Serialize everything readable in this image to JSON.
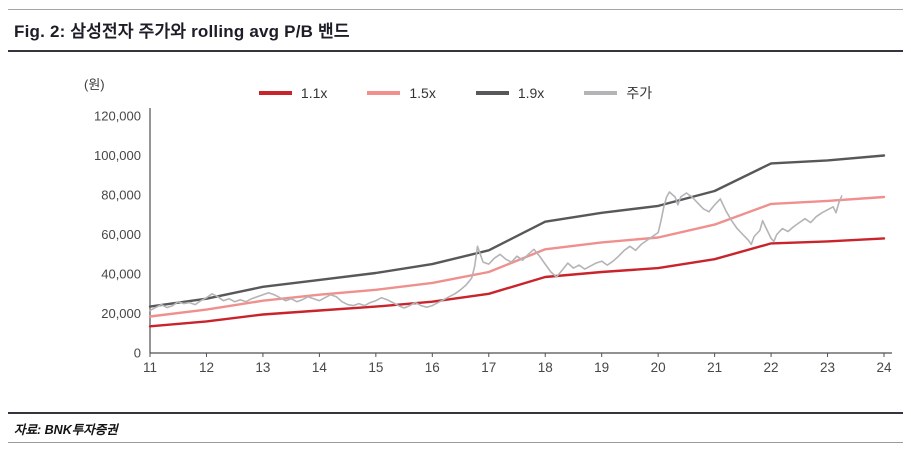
{
  "header": {
    "title": "Fig. 2: 삼성전자 주가와  rolling avg P/B 밴드"
  },
  "footer": {
    "source": "자료: BNK투자증권"
  },
  "chart_data": {
    "type": "line",
    "title": "삼성전자 주가와 rolling avg P/B 밴드",
    "unit_label": "(원)",
    "xlabel": "",
    "ylabel": "(원)",
    "grid": false,
    "legend_position": "top",
    "xlim": [
      11,
      24
    ],
    "ylim": [
      0,
      120000
    ],
    "x_ticks": [
      11,
      12,
      13,
      14,
      15,
      16,
      17,
      18,
      19,
      20,
      21,
      22,
      23,
      24
    ],
    "x_tick_labels": [
      "11",
      "12",
      "13",
      "14",
      "15",
      "16",
      "17",
      "18",
      "19",
      "20",
      "21",
      "22",
      "23",
      "24"
    ],
    "y_ticks": [
      0,
      20000,
      40000,
      60000,
      80000,
      100000,
      120000
    ],
    "y_tick_labels": [
      "0",
      "20,000",
      "40,000",
      "60,000",
      "80,000",
      "100,000",
      "120,000"
    ],
    "axis_color": "#4f4f55",
    "tick_label_color": "#474747",
    "series": [
      {
        "id": "1-1x",
        "name": "1.1x",
        "color": "#c9242b",
        "width": 2.4,
        "x": [
          11,
          12,
          13,
          14,
          15,
          16,
          17,
          18,
          19,
          20,
          21,
          22,
          23,
          24
        ],
        "values": [
          13500,
          16000,
          19500,
          21500,
          23500,
          26000,
          30000,
          38500,
          41000,
          43000,
          47500,
          55500,
          56500,
          58000
        ]
      },
      {
        "id": "1-5x",
        "name": "1.5x",
        "color": "#f0908e",
        "width": 2.4,
        "x": [
          11,
          12,
          13,
          14,
          15,
          16,
          17,
          18,
          19,
          20,
          21,
          22,
          23,
          24
        ],
        "values": [
          18500,
          22000,
          26500,
          29500,
          32000,
          35500,
          41000,
          52500,
          56000,
          58500,
          65000,
          75500,
          77000,
          79000
        ]
      },
      {
        "id": "1-9x",
        "name": "1.9x",
        "color": "#58585a",
        "width": 2.4,
        "x": [
          11,
          12,
          13,
          14,
          15,
          16,
          17,
          18,
          19,
          20,
          21,
          22,
          23,
          24
        ],
        "values": [
          23500,
          27500,
          33500,
          37000,
          40500,
          45000,
          52000,
          66500,
          71000,
          74500,
          82000,
          96000,
          97500,
          100000
        ]
      },
      {
        "id": "price",
        "name": "주가",
        "color": "#b4b4b6",
        "width": 1.6,
        "points": [
          [
            11.0,
            21500
          ],
          [
            11.1,
            23000
          ],
          [
            11.2,
            24500
          ],
          [
            11.3,
            23000
          ],
          [
            11.4,
            24000
          ],
          [
            11.5,
            26000
          ],
          [
            11.6,
            25000
          ],
          [
            11.7,
            25500
          ],
          [
            11.8,
            24500
          ],
          [
            11.9,
            26500
          ],
          [
            12.0,
            28000
          ],
          [
            12.1,
            30000
          ],
          [
            12.2,
            28500
          ],
          [
            12.3,
            26500
          ],
          [
            12.4,
            27500
          ],
          [
            12.5,
            26000
          ],
          [
            12.6,
            27000
          ],
          [
            12.7,
            26000
          ],
          [
            12.8,
            27500
          ],
          [
            12.9,
            28500
          ],
          [
            13.0,
            29500
          ],
          [
            13.1,
            30500
          ],
          [
            13.2,
            29500
          ],
          [
            13.3,
            28000
          ],
          [
            13.4,
            26500
          ],
          [
            13.5,
            27500
          ],
          [
            13.6,
            26000
          ],
          [
            13.7,
            27000
          ],
          [
            13.8,
            28500
          ],
          [
            13.9,
            27500
          ],
          [
            14.0,
            26500
          ],
          [
            14.1,
            28000
          ],
          [
            14.2,
            29500
          ],
          [
            14.3,
            28500
          ],
          [
            14.4,
            26000
          ],
          [
            14.5,
            24500
          ],
          [
            14.6,
            24000
          ],
          [
            14.7,
            25000
          ],
          [
            14.8,
            24000
          ],
          [
            14.9,
            25500
          ],
          [
            15.0,
            26500
          ],
          [
            15.1,
            28000
          ],
          [
            15.2,
            27000
          ],
          [
            15.3,
            25500
          ],
          [
            15.4,
            24000
          ],
          [
            15.5,
            22800
          ],
          [
            15.6,
            24000
          ],
          [
            15.7,
            25500
          ],
          [
            15.8,
            24000
          ],
          [
            15.9,
            23200
          ],
          [
            16.0,
            24000
          ],
          [
            16.1,
            25500
          ],
          [
            16.2,
            27000
          ],
          [
            16.3,
            28500
          ],
          [
            16.4,
            30000
          ],
          [
            16.5,
            32000
          ],
          [
            16.6,
            34500
          ],
          [
            16.7,
            38000
          ],
          [
            16.75,
            44000
          ],
          [
            16.8,
            54000
          ],
          [
            16.85,
            50000
          ],
          [
            16.9,
            46000
          ],
          [
            17.0,
            45000
          ],
          [
            17.1,
            48000
          ],
          [
            17.2,
            50000
          ],
          [
            17.3,
            47500
          ],
          [
            17.4,
            46000
          ],
          [
            17.5,
            49000
          ],
          [
            17.6,
            47000
          ],
          [
            17.7,
            50000
          ],
          [
            17.8,
            52500
          ],
          [
            17.9,
            49000
          ],
          [
            18.0,
            45000
          ],
          [
            18.1,
            41000
          ],
          [
            18.2,
            38500
          ],
          [
            18.3,
            42000
          ],
          [
            18.4,
            45500
          ],
          [
            18.5,
            43000
          ],
          [
            18.6,
            44500
          ],
          [
            18.7,
            42500
          ],
          [
            18.8,
            44000
          ],
          [
            18.9,
            45500
          ],
          [
            19.0,
            46500
          ],
          [
            19.1,
            44500
          ],
          [
            19.2,
            46500
          ],
          [
            19.3,
            49000
          ],
          [
            19.4,
            52000
          ],
          [
            19.5,
            54000
          ],
          [
            19.6,
            52000
          ],
          [
            19.7,
            55000
          ],
          [
            19.8,
            57000
          ],
          [
            19.9,
            59000
          ],
          [
            20.0,
            61000
          ],
          [
            20.05,
            67000
          ],
          [
            20.1,
            74000
          ],
          [
            20.15,
            79000
          ],
          [
            20.2,
            81500
          ],
          [
            20.3,
            79000
          ],
          [
            20.35,
            75000
          ],
          [
            20.4,
            79000
          ],
          [
            20.5,
            81000
          ],
          [
            20.6,
            79000
          ],
          [
            20.7,
            76000
          ],
          [
            20.8,
            73000
          ],
          [
            20.9,
            71500
          ],
          [
            21.0,
            75000
          ],
          [
            21.1,
            78000
          ],
          [
            21.2,
            72000
          ],
          [
            21.3,
            67000
          ],
          [
            21.4,
            63000
          ],
          [
            21.5,
            60000
          ],
          [
            21.6,
            57000
          ],
          [
            21.65,
            55000
          ],
          [
            21.7,
            59000
          ],
          [
            21.8,
            62000
          ],
          [
            21.85,
            67000
          ],
          [
            21.9,
            64000
          ],
          [
            22.0,
            58000
          ],
          [
            22.05,
            56500
          ],
          [
            22.1,
            60000
          ],
          [
            22.2,
            63000
          ],
          [
            22.3,
            61500
          ],
          [
            22.4,
            64000
          ],
          [
            22.5,
            66000
          ],
          [
            22.6,
            68000
          ],
          [
            22.7,
            66000
          ],
          [
            22.8,
            69000
          ],
          [
            22.9,
            71000
          ],
          [
            23.0,
            72500
          ],
          [
            23.1,
            74000
          ],
          [
            23.15,
            71000
          ],
          [
            23.2,
            76000
          ],
          [
            23.25,
            79500
          ]
        ]
      }
    ]
  }
}
